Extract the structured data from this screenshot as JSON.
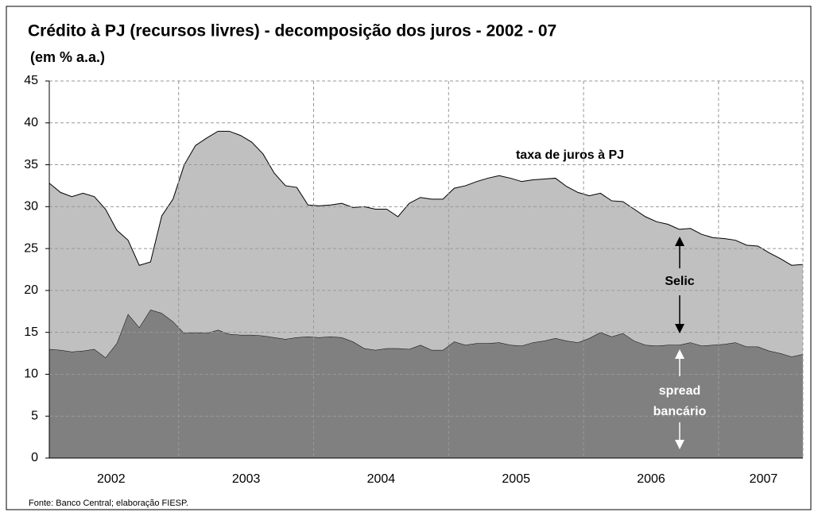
{
  "chart_data": {
    "type": "stacked_area",
    "title": "Crédito à PJ (recursos livres) - decomposição dos juros - 2002 - 07",
    "subtitle": "(em % a.a.)",
    "source": "Fonte: Banco Central; elaboração FIESP.",
    "x_labels": [
      "2002",
      "2003",
      "2004",
      "2005",
      "2006",
      "2007"
    ],
    "ylim": [
      0,
      45
    ],
    "yticks": [
      0,
      5,
      10,
      15,
      20,
      25,
      30,
      35,
      40,
      45
    ],
    "grid": true,
    "annotations": [
      "taxa de juros à PJ",
      "Selic",
      "spread",
      "bancário"
    ],
    "series": [
      {
        "name": "spread bancário",
        "color": "#808080",
        "values": [
          13.0,
          12.9,
          12.7,
          12.8,
          13.0,
          12.0,
          13.7,
          17.2,
          15.6,
          17.7,
          17.3,
          16.3,
          14.9,
          15.0,
          14.9,
          15.3,
          14.8,
          14.7,
          14.7,
          14.6,
          14.4,
          14.2,
          14.4,
          14.5,
          14.4,
          14.5,
          14.4,
          13.9,
          13.1,
          12.9,
          13.1,
          13.1,
          13.0,
          13.5,
          12.9,
          12.9,
          13.9,
          13.5,
          13.7,
          13.7,
          13.8,
          13.5,
          13.4,
          13.8,
          14.0,
          14.3,
          14.0,
          13.8,
          14.3,
          15.0,
          14.5,
          14.9,
          14.0,
          13.5,
          13.4,
          13.5,
          13.5,
          13.8,
          13.4,
          13.5,
          13.6,
          13.8,
          13.3,
          13.3,
          12.8,
          12.5,
          12.1,
          12.4
        ]
      },
      {
        "name": "Selic",
        "color": "#c0c0c0",
        "values": [
          19.8,
          18.8,
          18.5,
          18.8,
          18.2,
          17.7,
          13.5,
          8.8,
          7.4,
          5.7,
          11.6,
          14.6,
          20.1,
          22.3,
          23.3,
          23.7,
          24.2,
          23.8,
          23.0,
          21.7,
          19.6,
          18.3,
          17.9,
          15.7,
          15.7,
          15.7,
          16.0,
          16.0,
          16.9,
          16.8,
          16.6,
          15.7,
          17.4,
          17.6,
          18.0,
          18.0,
          18.3,
          19.0,
          19.3,
          19.7,
          19.9,
          19.9,
          19.6,
          19.4,
          19.3,
          19.1,
          18.4,
          17.9,
          17.0,
          16.6,
          16.2,
          15.7,
          15.7,
          15.3,
          14.8,
          14.4,
          13.8,
          13.6,
          13.3,
          12.8,
          12.6,
          12.2,
          12.1,
          12.0,
          11.7,
          11.3,
          10.9,
          10.7
        ]
      }
    ]
  }
}
